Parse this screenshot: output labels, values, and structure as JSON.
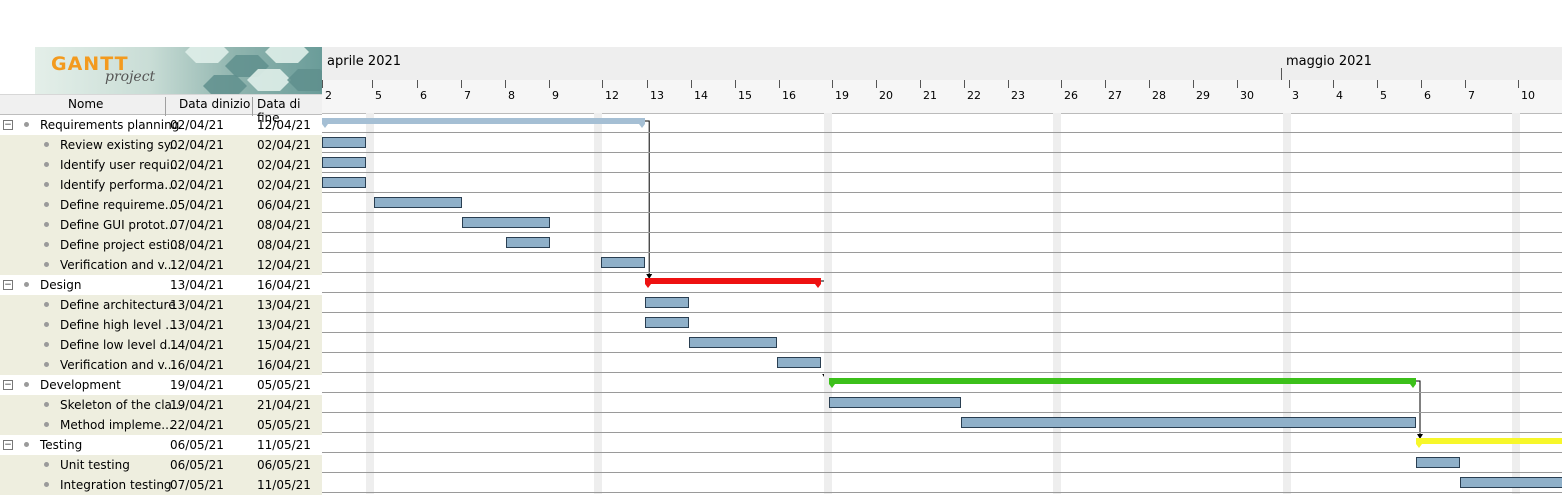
{
  "app": {
    "logo_text": "GANTT",
    "logo_sub": "project"
  },
  "timeline": {
    "months": [
      {
        "label": "aprile 2021"
      },
      {
        "label": "maggio 2021"
      }
    ],
    "days": [
      "2",
      "5",
      "6",
      "7",
      "8",
      "9",
      "12",
      "13",
      "14",
      "15",
      "16",
      "19",
      "20",
      "21",
      "22",
      "23",
      "26",
      "27",
      "28",
      "29",
      "30",
      "3",
      "4",
      "5",
      "6",
      "7",
      "10"
    ]
  },
  "table": {
    "headers": {
      "name": "Nome",
      "start": "Data dinizio",
      "end": "Data di fine"
    },
    "rows": [
      {
        "name": "Requirements planning",
        "start": "02/04/21",
        "end": "12/04/21",
        "summary": true
      },
      {
        "name": "Review existing sy...",
        "start": "02/04/21",
        "end": "02/04/21"
      },
      {
        "name": "Identify user requi...",
        "start": "02/04/21",
        "end": "02/04/21"
      },
      {
        "name": "Identify performa...",
        "start": "02/04/21",
        "end": "02/04/21"
      },
      {
        "name": "Define requireme...",
        "start": "05/04/21",
        "end": "06/04/21"
      },
      {
        "name": "Define GUI protot...",
        "start": "07/04/21",
        "end": "08/04/21"
      },
      {
        "name": "Define project esti...",
        "start": "08/04/21",
        "end": "08/04/21"
      },
      {
        "name": "Verification and v...",
        "start": "12/04/21",
        "end": "12/04/21"
      },
      {
        "name": "Design",
        "start": "13/04/21",
        "end": "16/04/21",
        "summary": true
      },
      {
        "name": "Define architecture",
        "start": "13/04/21",
        "end": "13/04/21"
      },
      {
        "name": "Define high level ...",
        "start": "13/04/21",
        "end": "13/04/21"
      },
      {
        "name": "Define low level d...",
        "start": "14/04/21",
        "end": "15/04/21"
      },
      {
        "name": "Verification and v...",
        "start": "16/04/21",
        "end": "16/04/21"
      },
      {
        "name": "Development",
        "start": "19/04/21",
        "end": "05/05/21",
        "summary": true
      },
      {
        "name": "Skeleton of the cla...",
        "start": "19/04/21",
        "end": "21/04/21"
      },
      {
        "name": "Method impleme...",
        "start": "22/04/21",
        "end": "05/05/21"
      },
      {
        "name": "Testing",
        "start": "06/05/21",
        "end": "11/05/21",
        "summary": true
      },
      {
        "name": "Unit testing",
        "start": "06/05/21",
        "end": "06/05/21"
      },
      {
        "name": "Integration testing",
        "start": "07/05/21",
        "end": "11/05/21"
      }
    ]
  },
  "colors": {
    "task_bar": "#8fb0c9",
    "summary_requirements": "#a5bfd4",
    "summary_design": "#ee1111",
    "summary_development": "#3cc01a",
    "summary_testing": "#f7f72a"
  }
}
